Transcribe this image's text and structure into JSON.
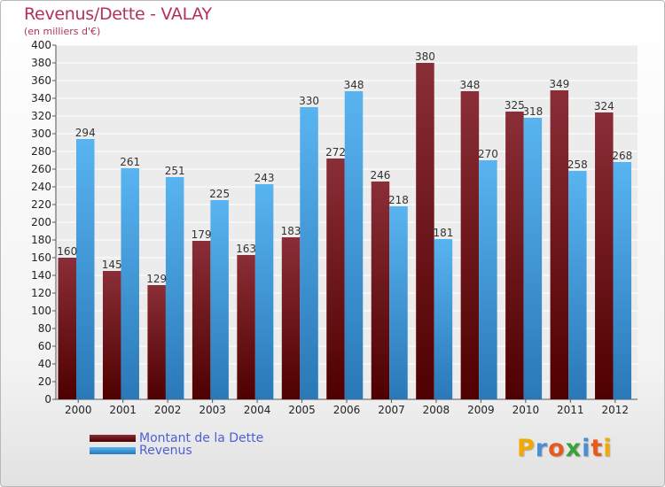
{
  "header": {
    "title": "Revenus/Dette - VALAY",
    "subtitle": "(en milliers d'€)"
  },
  "legend": {
    "dette_label": "Montant de la Dette",
    "revenus_label": "Revenus"
  },
  "logo": {
    "letters": [
      "P",
      "r",
      "o",
      "x",
      "i",
      "t",
      "i"
    ],
    "colors": [
      "#f2a900",
      "#4a8fd6",
      "#e85a1c",
      "#3aa23a",
      "#4a8fd6",
      "#e85a1c",
      "#f2a900"
    ]
  },
  "colors": {
    "dette_top": "#8a2e37",
    "dette_bottom": "#4f0000",
    "revenus_top": "#58b4f0",
    "revenus_bottom": "#2a78b8",
    "grid": "#ffffff",
    "plot_bg": "#ececec",
    "title": "#b0325d",
    "legend_text": "#4d5fd6"
  },
  "chart_data": {
    "type": "bar",
    "categories": [
      "2000",
      "2001",
      "2002",
      "2003",
      "2004",
      "2005",
      "2006",
      "2007",
      "2008",
      "2009",
      "2010",
      "2011",
      "2012"
    ],
    "series": [
      {
        "name": "Montant de la Dette",
        "values": [
          160,
          145,
          129,
          179,
          163,
          183,
          272,
          246,
          380,
          348,
          325,
          349,
          324
        ]
      },
      {
        "name": "Revenus",
        "values": [
          294,
          261,
          251,
          225,
          243,
          330,
          348,
          218,
          181,
          270,
          318,
          258,
          268
        ]
      }
    ],
    "title": "Revenus/Dette - VALAY",
    "subtitle": "(en milliers d'€)",
    "ylim": [
      0,
      400
    ],
    "ytick_step": 20,
    "grid": true,
    "legend_position": "bottom-left"
  }
}
